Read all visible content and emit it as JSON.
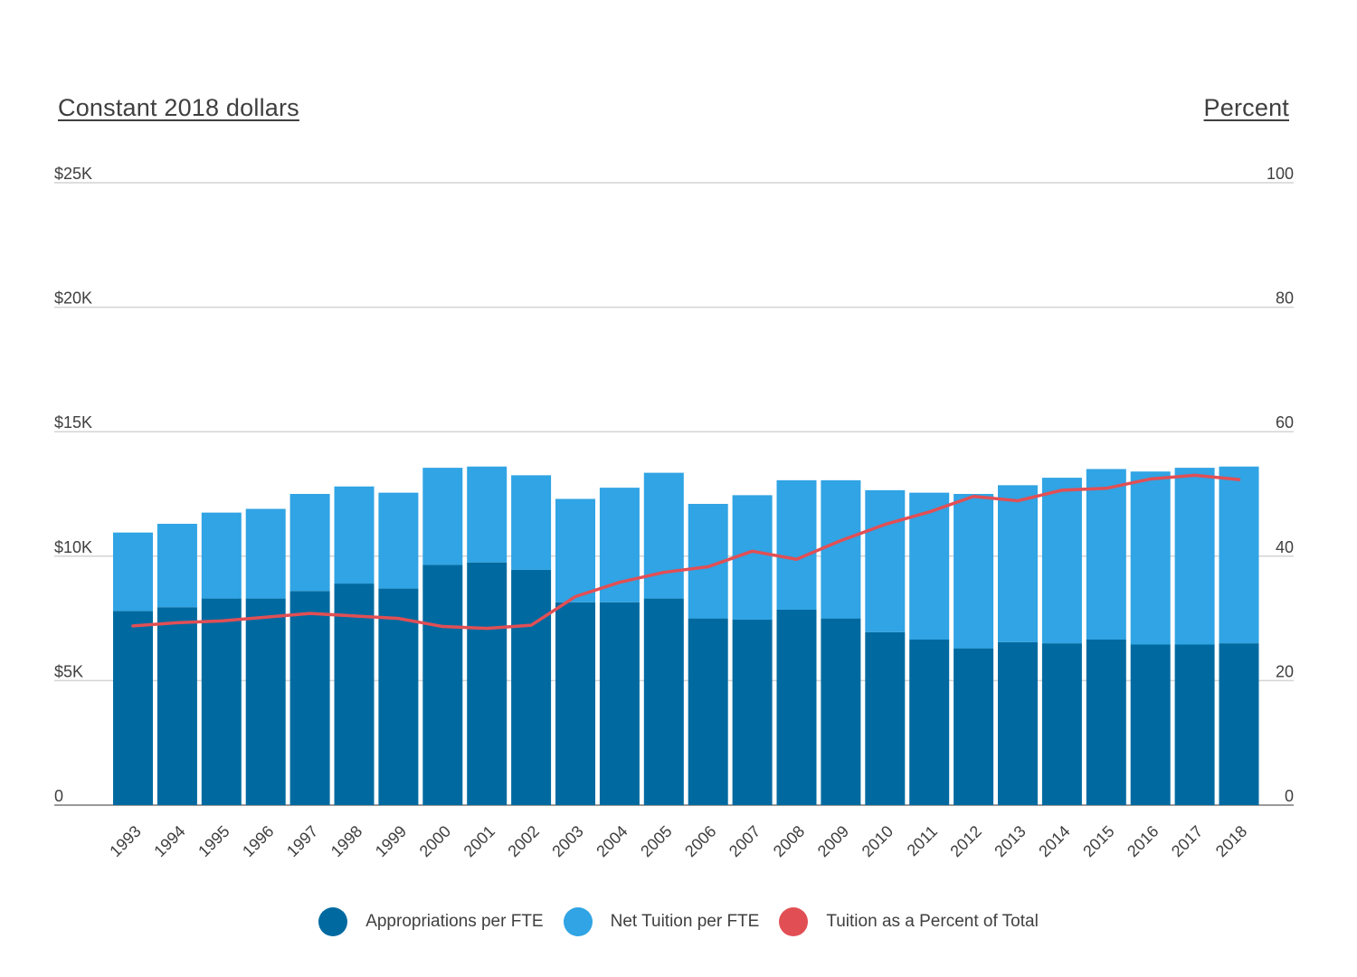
{
  "chart_data": {
    "type": "bar",
    "stacked": true,
    "left_axis_title": "Constant 2018 dollars",
    "right_axis_title": "Percent",
    "left_ticks": [
      "0",
      "$5K",
      "$10K",
      "$15K",
      "$20K",
      "$25K"
    ],
    "right_ticks": [
      "0",
      "20",
      "40",
      "60",
      "80",
      "100"
    ],
    "ylim_left": [
      0,
      25000
    ],
    "ylim_right": [
      0,
      100
    ],
    "grid": true,
    "legend_position": "bottom",
    "categories": [
      "1993",
      "1994",
      "1995",
      "1996",
      "1997",
      "1998",
      "1999",
      "2000",
      "2001",
      "2002",
      "2003",
      "2004",
      "2005",
      "2006",
      "2007",
      "2008",
      "2009",
      "2010",
      "2011",
      "2012",
      "2013",
      "2014",
      "2015",
      "2016",
      "2017",
      "2018"
    ],
    "series": [
      {
        "name": "Appropriations per FTE",
        "axis": "left",
        "kind": "bar",
        "color": "#006aa0",
        "values": [
          7800,
          7950,
          8300,
          8300,
          8600,
          8900,
          8700,
          9650,
          9750,
          9450,
          8150,
          8150,
          8300,
          7500,
          7450,
          7850,
          7500,
          6950,
          6650,
          6300,
          6550,
          6500,
          6650,
          6450,
          6450,
          6500
        ]
      },
      {
        "name": "Net Tuition per FTE",
        "axis": "left",
        "kind": "bar",
        "color": "#30a4e4",
        "values": [
          3150,
          3350,
          3450,
          3600,
          3900,
          3900,
          3850,
          3900,
          3850,
          3800,
          4150,
          4600,
          5050,
          4600,
          5000,
          5200,
          5550,
          5700,
          5900,
          6200,
          6300,
          6650,
          6850,
          6950,
          7100,
          7100
        ]
      },
      {
        "name": "Tuition as a Percent of Total",
        "axis": "right",
        "kind": "line",
        "color": "#e14f55",
        "values": [
          28.8,
          29.3,
          29.6,
          30.2,
          30.8,
          30.4,
          30.0,
          28.7,
          28.4,
          28.9,
          33.5,
          35.8,
          37.4,
          38.3,
          40.8,
          39.5,
          42.5,
          45.1,
          47.1,
          49.6,
          48.9,
          50.6,
          50.9,
          52.4,
          53.0,
          52.3
        ]
      }
    ]
  }
}
